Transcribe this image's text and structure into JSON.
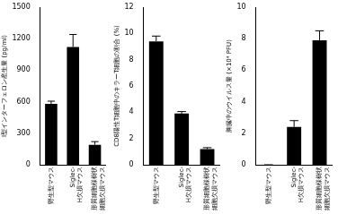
{
  "chart_data": [
    {
      "type": "bar",
      "y_label": "I型インターフェロン産生量 (pg/ml)",
      "categories": [
        "野生型マウス",
        "Siglec-H欠損マウス",
        "形質細胞様樹状細胞欠損マウス"
      ],
      "values": [
        580,
        1120,
        190
      ],
      "errors": [
        25,
        120,
        30
      ],
      "color": "#000000",
      "ylim": [
        0,
        1500
      ],
      "yticks": [
        0,
        300,
        600,
        900,
        1200,
        1500
      ],
      "grid": false
    },
    {
      "type": "bar",
      "y_label": "CD8陽性T細胞中のキラーT細胞の割合 (%)",
      "categories": [
        "野生型マウス",
        "Siglec-H欠損マウス",
        "形質細胞様樹状細胞欠損マウス"
      ],
      "values": [
        9.4,
        3.9,
        1.2
      ],
      "errors": [
        0.4,
        0.15,
        0.1
      ],
      "color": "#000000",
      "ylim": [
        0,
        12
      ],
      "yticks": [
        0,
        2,
        4,
        6,
        8,
        10,
        12
      ],
      "grid": false
    },
    {
      "type": "bar",
      "y_label": "脾臓中のウイルス量 (×10⁴ PFU)",
      "categories": [
        "野生型マウス",
        "Siglec-H欠損マウス",
        "形質細胞様樹状細胞欠損マウス"
      ],
      "values": [
        0,
        2.4,
        7.9
      ],
      "errors": [
        0,
        0.4,
        0.6
      ],
      "color": "#000000",
      "ylim": [
        0,
        10
      ],
      "yticks": [
        0,
        2,
        4,
        6,
        8,
        10
      ],
      "grid": false
    }
  ]
}
